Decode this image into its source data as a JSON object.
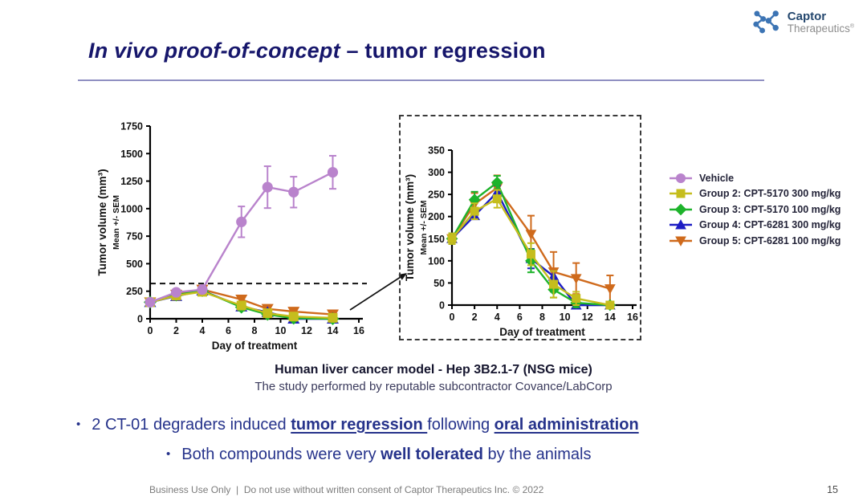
{
  "logo": {
    "brand": "Captor",
    "sub": "Therapeutics",
    "reg": "®"
  },
  "slide": {
    "title_italic": "In vivo proof-of-concept",
    "title_rest": " – tumor regression"
  },
  "caption": {
    "line1": "Human liver cancer model - Hep 3B2.1-7 (NSG mice)",
    "line2": "The study performed by reputable subcontractor Covance/LabCorp"
  },
  "bullets": [
    {
      "indent": 0,
      "segments": [
        {
          "t": "2 CT-01 degraders induced "
        },
        {
          "t": "tumor regression ",
          "b": true,
          "u": true
        },
        {
          "t": "following "
        },
        {
          "t": "oral administration",
          "b": true,
          "u": true
        }
      ]
    },
    {
      "indent": 1,
      "segments": [
        {
          "t": "Both compounds were very "
        },
        {
          "t": "well tolerated",
          "b": true
        },
        {
          "t": " by the animals"
        }
      ]
    }
  ],
  "footer": {
    "text": "Business Use Only  |  Do not use without written consent of Captor Therapeutics Inc. © 2022",
    "page": "15"
  },
  "legend": {
    "items": [
      {
        "label": "Vehicle",
        "color": "#b983cc",
        "marker": "circle"
      },
      {
        "label": "Group 2: CPT-5170 300 mg/kg",
        "color": "#c5bd1d",
        "marker": "square"
      },
      {
        "label": "Group 3: CPT-5170 100 mg/kg",
        "color": "#1db32b",
        "marker": "diamond"
      },
      {
        "label": "Group 4: CPT-6281 300 mg/kg",
        "color": "#1c1cc4",
        "marker": "triangle-up"
      },
      {
        "label": "Group 5: CPT-6281 100 mg/kg",
        "color": "#cf6a1c",
        "marker": "triangle-down"
      }
    ]
  },
  "chart_data": [
    {
      "type": "line",
      "title": "Tumor volume - full view",
      "xlabel": "Day of treatment",
      "ylabel": "Tumor volume (mm³)",
      "ylabel_sub": "Mean +/- SEM",
      "x": [
        0,
        2,
        4,
        7,
        9,
        11,
        14
      ],
      "xlim": [
        0,
        16
      ],
      "xticks": [
        0,
        2,
        4,
        6,
        8,
        10,
        12,
        14,
        16
      ],
      "ylim": [
        0,
        1750
      ],
      "yticks": [
        0,
        250,
        500,
        750,
        1000,
        1250,
        1500,
        1750
      ],
      "dashed_hline": 320,
      "grid": false,
      "series": [
        {
          "name": "Vehicle",
          "color": "#b983cc",
          "marker": "circle",
          "values": [
            150,
            240,
            265,
            880,
            1195,
            1150,
            1330
          ],
          "errors": [
            20,
            25,
            25,
            140,
            190,
            140,
            150
          ]
        },
        {
          "name": "Group 2: CPT-5170 300 mg/kg",
          "color": "#c5bd1d",
          "marker": "square",
          "values": [
            150,
            210,
            245,
            120,
            50,
            20,
            8
          ],
          "errors": [
            15,
            15,
            20,
            35,
            30,
            25,
            12
          ]
        },
        {
          "name": "Group 3: CPT-5170 100 mg/kg",
          "color": "#1db32b",
          "marker": "diamond",
          "values": [
            150,
            215,
            255,
            105,
            40,
            5,
            0
          ],
          "errors": [
            15,
            15,
            20,
            30,
            22,
            10,
            5
          ]
        },
        {
          "name": "Group 4: CPT-6281 300 mg/kg",
          "color": "#1c1cc4",
          "marker": "triangle-up",
          "values": [
            150,
            205,
            255,
            110,
            60,
            0,
            0
          ],
          "errors": [
            15,
            10,
            15,
            25,
            12,
            5,
            5
          ]
        },
        {
          "name": "Group 5: CPT-6281 100 mg/kg",
          "color": "#cf6a1c",
          "marker": "triangle-down",
          "values": [
            150,
            220,
            265,
            175,
            90,
            65,
            40
          ],
          "errors": [
            15,
            20,
            25,
            35,
            35,
            30,
            25
          ]
        }
      ]
    },
    {
      "type": "line",
      "title": "Tumor volume - zoomed view (treated groups)",
      "xlabel": "Day of treatment",
      "ylabel": "Tumor volume (mm³)",
      "ylabel_sub": "Mean +/- SEM",
      "x": [
        0,
        2,
        4,
        7,
        9,
        11,
        14
      ],
      "xlim": [
        0,
        16
      ],
      "xticks": [
        0,
        2,
        4,
        6,
        8,
        10,
        12,
        14,
        16
      ],
      "ylim": [
        0,
        350
      ],
      "yticks": [
        0,
        50,
        100,
        150,
        200,
        250,
        300,
        350
      ],
      "grid": false,
      "series": [
        {
          "name": "Group 2: CPT-5170 300 mg/kg",
          "color": "#c5bd1d",
          "marker": "square",
          "values": [
            150,
            212,
            240,
            115,
            47,
            15,
            0
          ],
          "errors": [
            12,
            18,
            20,
            25,
            30,
            15,
            8
          ]
        },
        {
          "name": "Group 3: CPT-5170 100 mg/kg",
          "color": "#1db32b",
          "marker": "diamond",
          "values": [
            150,
            238,
            277,
            100,
            35,
            5,
            0
          ],
          "errors": [
            12,
            18,
            15,
            26,
            18,
            10,
            5
          ]
        },
        {
          "name": "Group 4: CPT-6281 300 mg/kg",
          "color": "#1c1cc4",
          "marker": "triangle-up",
          "values": [
            150,
            202,
            255,
            105,
            65,
            0,
            0
          ],
          "errors": [
            12,
            8,
            15,
            22,
            12,
            5,
            5
          ]
        },
        {
          "name": "Group 5: CPT-6281 100 mg/kg",
          "color": "#cf6a1c",
          "marker": "triangle-down",
          "values": [
            150,
            228,
            265,
            160,
            75,
            60,
            37
          ],
          "errors": [
            12,
            25,
            28,
            42,
            45,
            35,
            30
          ]
        }
      ]
    }
  ]
}
